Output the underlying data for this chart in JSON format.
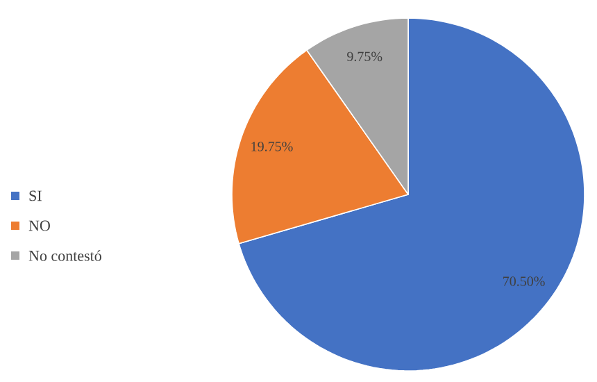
{
  "chart_data": {
    "type": "pie",
    "categories": [
      "SI",
      "NO",
      "No contestó"
    ],
    "values": [
      70.5,
      19.75,
      9.75
    ],
    "value_labels": [
      "70.50%",
      "19.75%",
      "9.75%"
    ],
    "colors": [
      "#4472c4",
      "#ed7d31",
      "#a5a5a5"
    ],
    "legend": "left"
  }
}
